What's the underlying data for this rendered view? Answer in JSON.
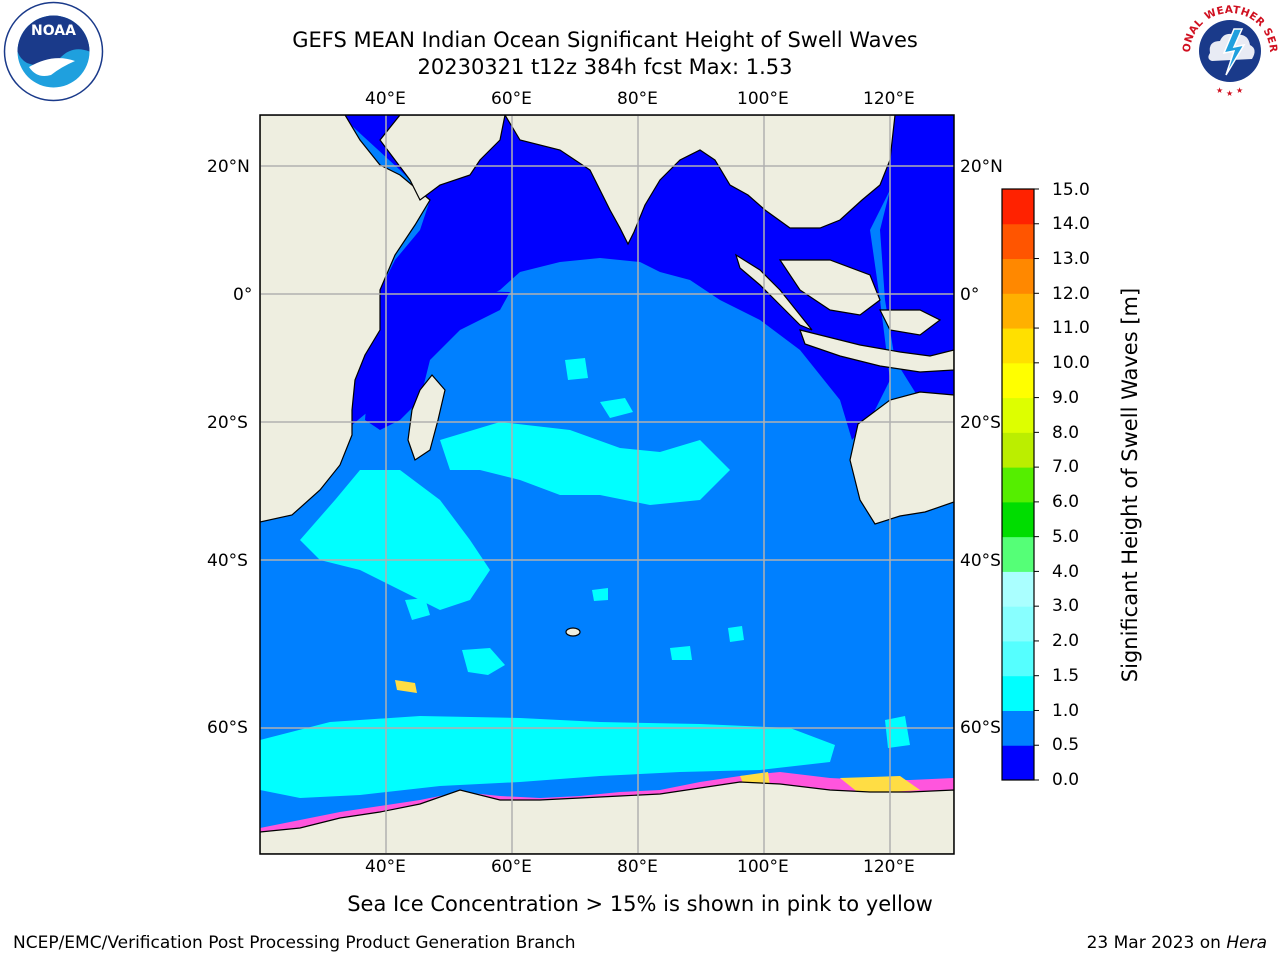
{
  "title": {
    "line1": "GEFS MEAN Indian Ocean Significant Height of Swell Waves",
    "line2": "20230321 t12z 384h fcst   Max: 1.53"
  },
  "map": {
    "lon_labels": [
      "40°E",
      "60°E",
      "80°E",
      "100°E",
      "120°E"
    ],
    "lon_values": [
      40,
      60,
      80,
      100,
      120
    ],
    "lat_labels": [
      "20°N",
      "0°",
      "20°S",
      "40°S",
      "60°S"
    ],
    "lat_values": [
      20,
      0,
      -20,
      -40,
      -60
    ],
    "extent": {
      "lon_min": 20,
      "lon_max": 130,
      "lat_min": -70,
      "lat_max": 28
    },
    "colors": {
      "land": "#eeeee0",
      "ocean_low": "#0000ff",
      "ocean_mid": "#0080ff",
      "ocean_high": "#00ffff",
      "sea_ice_pink": "#ff55dd",
      "sea_ice_yellow": "#ffdd44",
      "grid": "#b0b0b0"
    }
  },
  "colorbar": {
    "tick_labels": [
      "0.0",
      "0.5",
      "1.0",
      "1.5",
      "2.0",
      "3.0",
      "4.0",
      "5.0",
      "6.0",
      "7.0",
      "8.0",
      "9.0",
      "10.0",
      "11.0",
      "12.0",
      "13.0",
      "14.0",
      "15.0"
    ],
    "bins": [
      0.0,
      0.5,
      1.0,
      1.5,
      2.0,
      3.0,
      4.0,
      5.0,
      6.0,
      7.0,
      8.0,
      9.0,
      10.0,
      11.0,
      12.0,
      13.0,
      14.0,
      15.0
    ],
    "colors": [
      "#0000ff",
      "#0080ff",
      "#00ffff",
      "#55ffff",
      "#88ffff",
      "#aaffff",
      "#55ff77",
      "#00dd00",
      "#55ee00",
      "#bbee00",
      "#ddff00",
      "#ffff00",
      "#ffe000",
      "#ffb000",
      "#ff8800",
      "#ff5500",
      "#ff2200"
    ],
    "label": "Significant Height of Swell Waves [m]"
  },
  "note": "Sea Ice Concentration > 15% is shown in pink to yellow",
  "footer": {
    "left": "NCEP/EMC/Verification Post Processing Product Generation Branch",
    "right_date": "23 Mar 2023 on ",
    "right_host": "Hera"
  },
  "logos": {
    "left": "NOAA",
    "right": "NATIONAL WEATHER SERVICE"
  }
}
